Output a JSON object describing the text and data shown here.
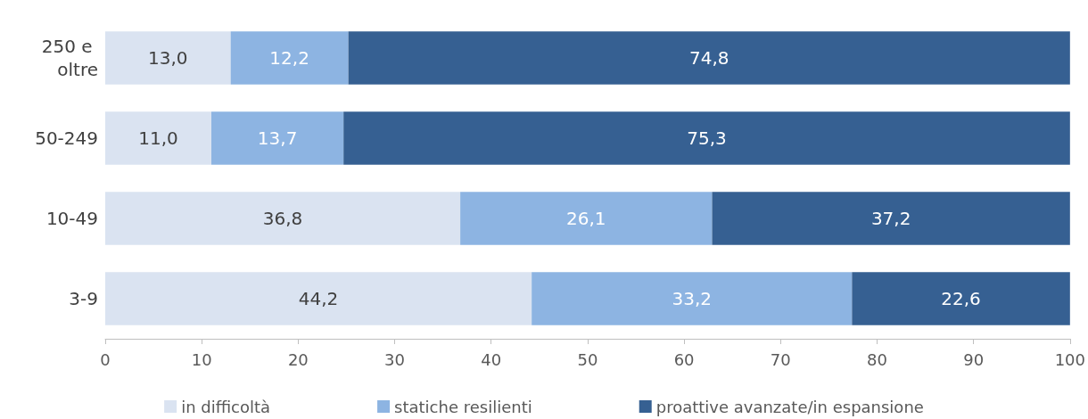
{
  "chart_data": {
    "type": "bar",
    "orientation": "horizontal",
    "stacked": true,
    "categories": [
      "250 e oltre",
      "50-249",
      "10-49",
      "3-9"
    ],
    "series": [
      {
        "name": "in difficoltà",
        "color": "#dae3f1",
        "values": [
          13.0,
          11.0,
          36.8,
          44.2
        ],
        "value_labels": [
          "13,0",
          "11,0",
          "36,8",
          "44,2"
        ]
      },
      {
        "name": "statiche resilienti",
        "color": "#8db4e2",
        "values": [
          12.2,
          13.7,
          26.1,
          33.2
        ],
        "value_labels": [
          "12,2",
          "13,7",
          "26,1",
          "33,2"
        ]
      },
      {
        "name": "proattive avanzate/in espansione",
        "color": "#366092",
        "values": [
          74.8,
          75.3,
          37.2,
          22.6
        ],
        "value_labels": [
          "74,8",
          "75,3",
          "37,2",
          "22,6"
        ]
      }
    ],
    "xlim": [
      0,
      100
    ],
    "xticks": [
      0,
      10,
      20,
      30,
      40,
      50,
      60,
      70,
      80,
      90,
      100
    ],
    "grid": false,
    "legend": "bottom"
  }
}
